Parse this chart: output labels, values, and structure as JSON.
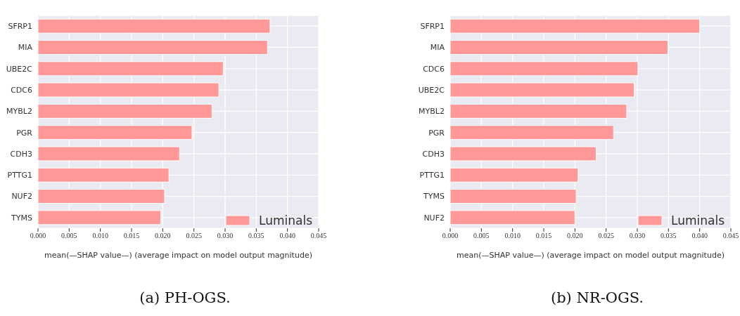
{
  "chart_data": [
    {
      "type": "bar",
      "orientation": "horizontal",
      "categories": [
        "SFRP1",
        "MIA",
        "UBE2C",
        "CDC6",
        "MYBL2",
        "PGR",
        "CDH3",
        "PTTG1",
        "NUF2",
        "TYMS"
      ],
      "series": [
        {
          "name": "Luminals",
          "color": "#ff9896",
          "values": [
            0.0372,
            0.0368,
            0.0297,
            0.029,
            0.0279,
            0.0247,
            0.0227,
            0.021,
            0.0203,
            0.0197
          ]
        }
      ],
      "xlim": [
        0,
        0.045
      ],
      "xticks": [
        {
          "value": 0,
          "label": "0.000"
        },
        0.005,
        {
          "value": 0.01,
          "label": "0.010"
        },
        0.015,
        {
          "value": 0.02,
          "label": "0.020"
        },
        0.025,
        {
          "value": 0.03,
          "label": "0.030"
        },
        0.035,
        {
          "value": 0.04,
          "label": "0.040"
        },
        0.045
      ],
      "xlabel": "mean(—SHAP value—) (average impact on model output magnitude)",
      "legend": "bottom right",
      "grid": true,
      "annotations": [
        "(a) PH-OGS."
      ]
    },
    {
      "type": "bar",
      "orientation": "horizontal",
      "categories": [
        "SFRP1",
        "MIA",
        "CDC6",
        "UBE2C",
        "MYBL2",
        "PGR",
        "CDH3",
        "PTTG1",
        "TYMS",
        "NUF2"
      ],
      "series": [
        {
          "name": "Luminals",
          "color": "#ff9896",
          "values": [
            0.04,
            0.0349,
            0.0301,
            0.0295,
            0.0283,
            0.0262,
            0.0234,
            0.0205,
            0.0202,
            0.02
          ]
        }
      ],
      "xlim": [
        0,
        0.045
      ],
      "xticks": [
        {
          "value": 0,
          "label": "0.000"
        },
        0.005,
        {
          "value": 0.01,
          "label": "0.010"
        },
        0.015,
        {
          "value": 0.02,
          "label": "0.020"
        },
        0.025,
        {
          "value": 0.03,
          "label": "0.030"
        },
        0.035,
        {
          "value": 0.04,
          "label": "0.040"
        },
        0.045
      ],
      "xlabel": "mean(—SHAP value—) (average impact on model output magnitude)",
      "legend": "bottom right",
      "grid": true,
      "annotations": [
        "(b) NR-OGS."
      ]
    }
  ]
}
